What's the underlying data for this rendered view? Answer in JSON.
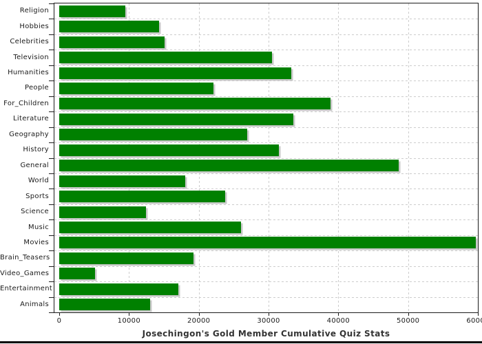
{
  "title": "Josechingon's Gold Member Cumulative Quiz Stats",
  "chart_data": {
    "type": "bar",
    "orientation": "horizontal",
    "title": "Josechingon's Gold Member Cumulative Quiz Stats",
    "xlabel": "",
    "ylabel": "",
    "xlim": [
      0,
      60000
    ],
    "x_tick_labels": [
      "0",
      "10000",
      "20000",
      "30000",
      "40000",
      "50000",
      "60000"
    ],
    "x_tick_values": [
      0,
      10000,
      20000,
      30000,
      40000,
      50000,
      60000
    ],
    "grid": "dashed",
    "legend": "none",
    "categories": [
      "Religion",
      "Hobbies",
      "Celebrities",
      "Television",
      "Humanities",
      "People",
      "For_Children",
      "Literature",
      "Geography",
      "History",
      "General",
      "World",
      "Sports",
      "Science",
      "Music",
      "Movies",
      "Brain_Teasers",
      "Video_Games",
      "Entertainment",
      "Animals"
    ],
    "values": [
      9500,
      14300,
      15100,
      30500,
      33300,
      22100,
      38900,
      33600,
      26900,
      31500,
      48700,
      18100,
      23800,
      12400,
      26100,
      59700,
      19200,
      5100,
      17100,
      13000
    ]
  },
  "colors": {
    "bar": "#008000",
    "bar_shadow": "#c8c8c8",
    "gridline": "#cccccc",
    "axis": "#1a1a1a",
    "label_text": "#1a1a1a",
    "title_text": "#333333"
  }
}
